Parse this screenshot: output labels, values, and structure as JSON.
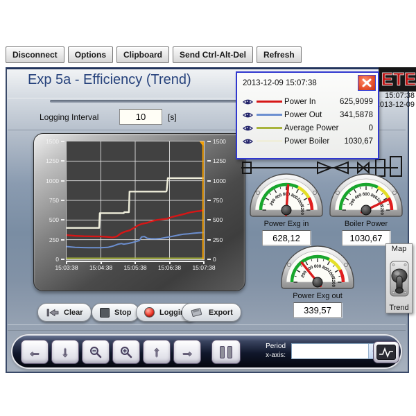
{
  "vnc_toolbar": {
    "buttons": [
      "Disconnect",
      "Options",
      "Clipboard",
      "Send Ctrl-Alt-Del",
      "Refresh"
    ]
  },
  "header": {
    "title": "Exp 5a - Efficiency (Trend)",
    "logo_text": "ETE",
    "clock": {
      "time": "15:07:38",
      "date": "2013-12-09"
    }
  },
  "logging_interval": {
    "label": "Logging Interval",
    "value": "10",
    "unit": "[s]"
  },
  "legend_popup": {
    "timestamp": "2013-12-09 15:07:38",
    "rows": [
      {
        "name": "Power In",
        "value": "625,9099",
        "color": "#d61616"
      },
      {
        "name": "Power Out",
        "value": "341,5878",
        "color": "#6c8fd0"
      },
      {
        "name": "Average Power",
        "value": "0",
        "color": "#a8b43c"
      },
      {
        "name": "Power Boiler",
        "value": "1030,67",
        "color": "#efeedb"
      }
    ]
  },
  "chart_data": {
    "type": "line",
    "title": "",
    "xlabel": "",
    "ylabel": "",
    "x_tick_labels": [
      "15:03:38",
      "15:04:38",
      "15:05:38",
      "15:06:38",
      "15:07:38"
    ],
    "x_seconds_range": [
      0,
      240
    ],
    "y_ticks": [
      0,
      250,
      500,
      750,
      1000,
      1250,
      1500
    ],
    "ylim": [
      0,
      1500
    ],
    "grid": true,
    "plot_bg": "#414141",
    "grid_color": "#e8e8e8",
    "cursor": {
      "x_seconds": 240,
      "color": "#f2a007"
    },
    "series": [
      {
        "name": "Power In",
        "color": "#d61616",
        "width": 2.4,
        "points": [
          [
            0,
            308
          ],
          [
            15,
            298
          ],
          [
            30,
            294
          ],
          [
            45,
            292
          ],
          [
            60,
            290
          ],
          [
            70,
            287
          ],
          [
            80,
            279
          ],
          [
            88,
            292
          ],
          [
            95,
            330
          ],
          [
            102,
            352
          ],
          [
            110,
            368
          ],
          [
            118,
            400
          ],
          [
            125,
            432
          ],
          [
            132,
            452
          ],
          [
            140,
            462
          ],
          [
            150,
            487
          ],
          [
            158,
            500
          ],
          [
            166,
            508
          ],
          [
            175,
            515
          ],
          [
            185,
            540
          ],
          [
            195,
            558
          ],
          [
            205,
            575
          ],
          [
            215,
            596
          ],
          [
            225,
            608
          ],
          [
            233,
            615
          ],
          [
            240,
            626
          ]
        ]
      },
      {
        "name": "Power Out",
        "color": "#6c8fd0",
        "width": 2,
        "points": [
          [
            0,
            162
          ],
          [
            15,
            153
          ],
          [
            30,
            149
          ],
          [
            45,
            147
          ],
          [
            60,
            148
          ],
          [
            72,
            152
          ],
          [
            82,
            170
          ],
          [
            90,
            192
          ],
          [
            96,
            200
          ],
          [
            100,
            192
          ],
          [
            108,
            202
          ],
          [
            116,
            215
          ],
          [
            122,
            228
          ],
          [
            127,
            238
          ],
          [
            131,
            284
          ],
          [
            136,
            290
          ],
          [
            141,
            268
          ],
          [
            147,
            262
          ],
          [
            155,
            260
          ],
          [
            165,
            266
          ],
          [
            175,
            280
          ],
          [
            185,
            292
          ],
          [
            195,
            308
          ],
          [
            205,
            320
          ],
          [
            213,
            325
          ],
          [
            222,
            332
          ],
          [
            231,
            337
          ],
          [
            240,
            341
          ]
        ]
      },
      {
        "name": "Average Power",
        "color": "#a8b43c",
        "width": 2,
        "points": [
          [
            0,
            0
          ],
          [
            240,
            0
          ]
        ]
      },
      {
        "name": "Power Boiler",
        "color": "#efeedb",
        "width": 2.4,
        "points": [
          [
            0,
            400
          ],
          [
            57,
            400
          ],
          [
            58,
            588
          ],
          [
            100,
            588
          ],
          [
            101,
            600
          ],
          [
            109,
            600
          ],
          [
            110,
            862
          ],
          [
            174,
            862
          ],
          [
            175,
            872
          ],
          [
            177,
            1032
          ],
          [
            240,
            1032
          ]
        ]
      }
    ]
  },
  "gauges": {
    "min": 0,
    "max": 1200,
    "tick_step": 100,
    "label_step": 200,
    "zones": [
      {
        "to": 780,
        "color": "#18a62c"
      },
      {
        "to": 1010,
        "color": "#e4df28"
      },
      {
        "to": 1200,
        "color": "#e01e1e"
      }
    ],
    "items": [
      {
        "label": "Power Exg in",
        "display": "628,12",
        "value": 628.12
      },
      {
        "label": "Boiler Power",
        "display": "1030,67",
        "value": 1030.67
      },
      {
        "label": "Power Exg out",
        "display": "339,57",
        "value": 339.57
      }
    ]
  },
  "view_toggle": {
    "top": "Map",
    "bottom": "Trend"
  },
  "control_buttons": [
    {
      "label": "Clear"
    },
    {
      "label": "Stop"
    },
    {
      "label": "Logging"
    },
    {
      "label": "Export"
    }
  ],
  "nav_toolbar": {
    "arrow_glyphs": {
      "left": "←",
      "down": "↓",
      "up": "↑",
      "right": "→"
    },
    "period_label_line1": "Period",
    "period_label_line2": "x-axis:",
    "dropdown_value": ""
  }
}
